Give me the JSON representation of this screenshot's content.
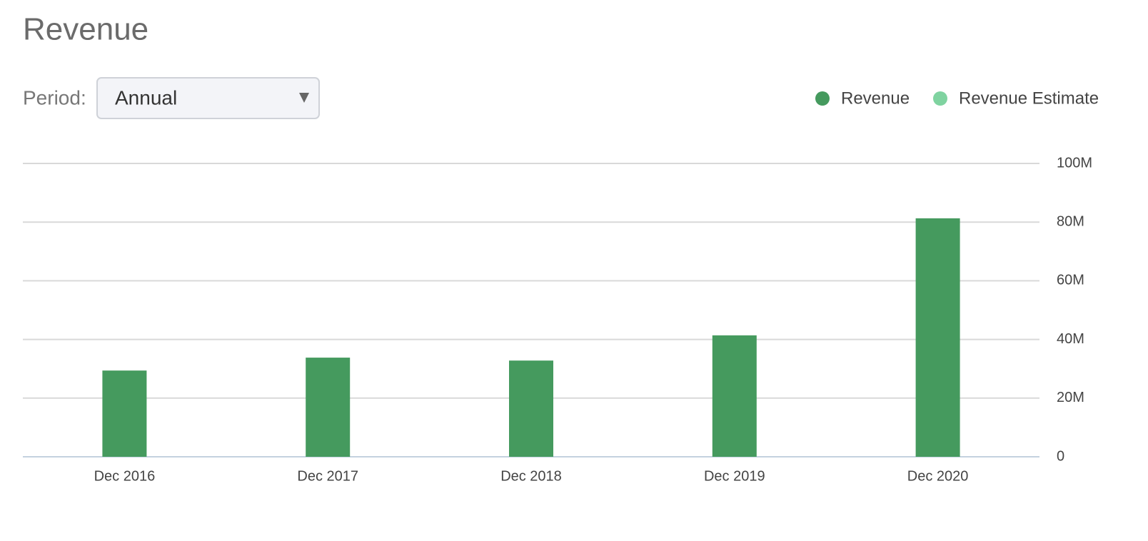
{
  "period": {
    "label": "Period:",
    "selected": "Annual"
  },
  "chart_data": {
    "type": "bar",
    "title": "Revenue",
    "categories": [
      "Dec 2016",
      "Dec 2017",
      "Dec 2018",
      "Dec 2019",
      "Dec 2020"
    ],
    "series": [
      {
        "name": "Revenue",
        "color": "#459a5e",
        "values": [
          29400000,
          33800000,
          32800000,
          41400000,
          81300000
        ]
      },
      {
        "name": "Revenue Estimate",
        "color": "#7fd3a0",
        "values": [
          null,
          null,
          null,
          null,
          null
        ]
      }
    ],
    "ylim": [
      0,
      100000000
    ],
    "yticks": [
      0,
      {
        "value": 20000000,
        "label": "20M"
      },
      {
        "value": 40000000,
        "label": "40M"
      },
      {
        "value": 60000000,
        "label": "60M"
      },
      {
        "value": 80000000,
        "label": "80M"
      },
      {
        "value": 100000000,
        "label": "100M"
      }
    ],
    "grid": true,
    "legend": "top-right"
  }
}
